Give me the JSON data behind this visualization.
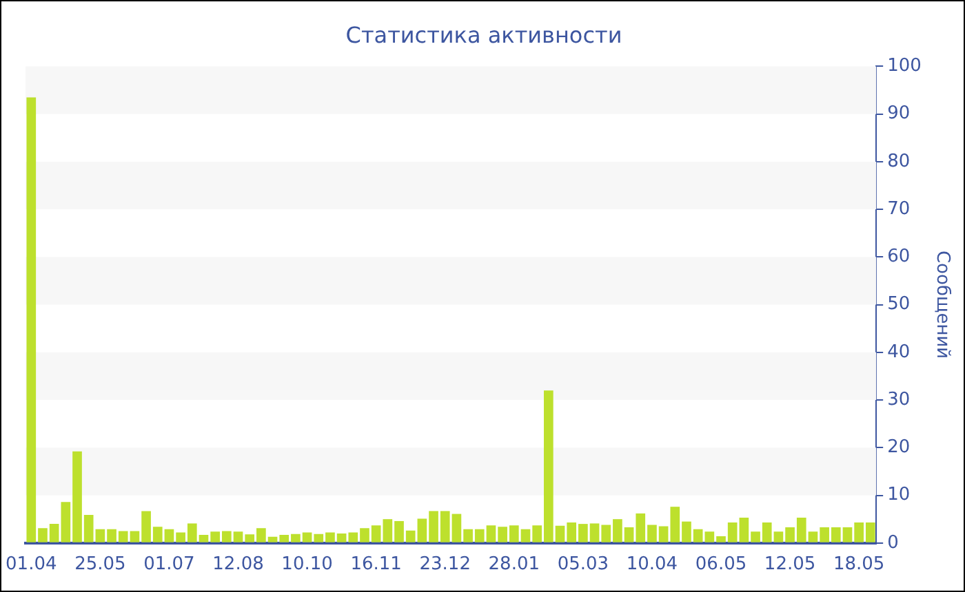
{
  "chart_data": {
    "type": "bar",
    "title": "Статистика активности",
    "ylabel": "Сообщений",
    "categories": [
      "01.04",
      null,
      null,
      null,
      null,
      null,
      "25.05",
      null,
      null,
      null,
      null,
      null,
      "01.07",
      null,
      null,
      null,
      null,
      null,
      "12.08",
      null,
      null,
      null,
      null,
      null,
      "10.10",
      null,
      null,
      null,
      null,
      null,
      "16.11",
      null,
      null,
      null,
      null,
      null,
      "23.12",
      null,
      null,
      null,
      null,
      null,
      "28.01",
      null,
      null,
      null,
      null,
      null,
      "05.03",
      null,
      null,
      null,
      null,
      null,
      "10.04",
      null,
      null,
      null,
      null,
      null,
      "06.05",
      null,
      null,
      null,
      null,
      null,
      "12.05",
      null,
      null,
      null,
      null,
      null,
      "18.05",
      null
    ],
    "values": [
      93.5,
      3.1,
      4.0,
      8.6,
      19.2,
      5.9,
      2.9,
      2.9,
      2.5,
      2.5,
      6.7,
      3.4,
      2.9,
      2.2,
      4.1,
      1.7,
      2.4,
      2.5,
      2.4,
      1.8,
      3.1,
      1.3,
      1.7,
      1.9,
      2.2,
      1.9,
      2.2,
      2.0,
      2.2,
      3.1,
      3.7,
      5.0,
      4.6,
      2.6,
      5.1,
      6.7,
      6.7,
      6.1,
      2.9,
      2.9,
      3.7,
      3.4,
      3.7,
      2.9,
      3.7,
      32,
      3.6,
      4.3,
      4.0,
      4.1,
      3.8,
      5.0,
      3.3,
      6.2,
      3.8,
      3.5,
      7.6,
      4.5,
      2.9,
      2.4,
      1.4,
      4.3,
      5.3,
      2.4,
      4.3,
      2.4,
      3.3,
      5.3,
      2.4,
      3.3,
      3.3,
      3.3,
      4.3,
      4.3
    ],
    "color": "#bde02d",
    "ylim": [
      0,
      100
    ],
    "yticks": [
      0,
      10,
      20,
      30,
      40,
      50,
      60,
      70,
      80,
      90,
      100
    ],
    "legend": false
  }
}
